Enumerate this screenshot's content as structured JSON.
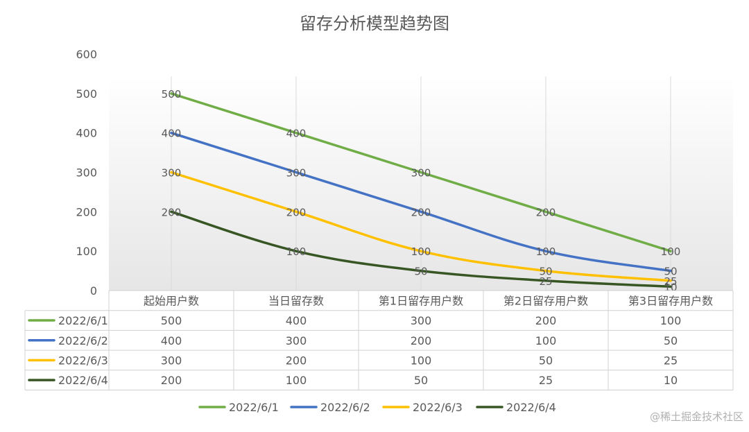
{
  "chart_data": {
    "type": "line",
    "title": "留存分析模型趋势图",
    "categories": [
      "起始用户数",
      "当日留存数",
      "第1日留存用户数",
      "第2日留存用户数",
      "第3日留存用户数"
    ],
    "series": [
      {
        "name": "2022/6/1",
        "values": [
          500,
          400,
          300,
          200,
          100
        ],
        "color": "#70AD47"
      },
      {
        "name": "2022/6/2",
        "values": [
          400,
          300,
          200,
          100,
          50
        ],
        "color": "#4472C4"
      },
      {
        "name": "2022/6/3",
        "values": [
          300,
          200,
          100,
          50,
          25
        ],
        "color": "#FFC000"
      },
      {
        "name": "2022/6/4",
        "values": [
          200,
          100,
          50,
          25,
          10
        ],
        "color": "#375623"
      }
    ],
    "yticks": [
      0,
      100,
      200,
      300,
      400,
      500,
      600
    ],
    "ylim": [
      0,
      600
    ],
    "xlabel": "",
    "ylabel": "",
    "data_labels": true,
    "smooth": true,
    "data_table": true,
    "legend_position": "bottom",
    "grid": "vertical category lines"
  },
  "watermark": "@稀土掘金技术社区"
}
